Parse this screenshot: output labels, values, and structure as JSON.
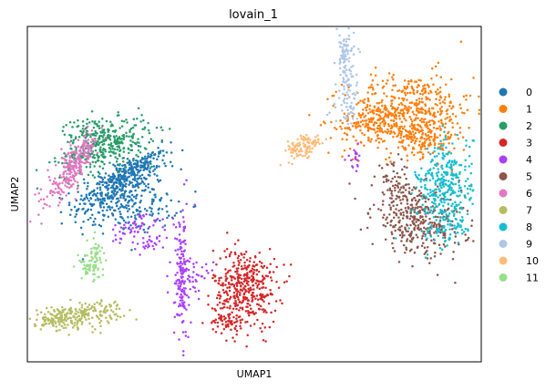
{
  "chart_data": {
    "type": "scatter",
    "title": "lovain_1",
    "xlabel": "UMAP1",
    "ylabel": "UMAP2",
    "xlim": [
      0,
      100
    ],
    "ylim": [
      0,
      100
    ],
    "ticks": "none",
    "grid": false,
    "legend_position": "right",
    "series": [
      {
        "name": "0",
        "color": "#1f77b4",
        "blobs": [
          [
            20,
            52,
            5,
            5,
            0.6,
            380
          ],
          [
            23,
            57,
            4,
            3,
            0.9,
            150
          ],
          [
            25,
            45,
            4,
            3,
            0.2,
            110
          ]
        ]
      },
      {
        "name": "1",
        "color": "#ff7f0e",
        "blobs": [
          [
            84,
            74,
            7,
            6,
            0.1,
            520
          ],
          [
            76,
            72,
            3,
            3,
            0.4,
            120
          ],
          [
            87,
            67,
            4,
            3,
            0,
            120
          ]
        ]
      },
      {
        "name": "2",
        "color": "#279e68",
        "blobs": [
          [
            17,
            64,
            5,
            4,
            0.5,
            330
          ],
          [
            14,
            69,
            3,
            2,
            0.2,
            80
          ]
        ]
      },
      {
        "name": "3",
        "color": "#d62728",
        "blobs": [
          [
            48,
            22,
            3.5,
            6,
            0,
            420
          ],
          [
            44,
            12,
            2,
            1.5,
            0,
            50
          ]
        ]
      },
      {
        "name": "4",
        "color": "#aa40fc",
        "blobs": [
          [
            34,
            25,
            0.8,
            10,
            0,
            150
          ],
          [
            37,
            25,
            2,
            2.5,
            0,
            40
          ],
          [
            23,
            40,
            3,
            2,
            0.4,
            50
          ],
          [
            28,
            36,
            3,
            2,
            0.6,
            30
          ],
          [
            72,
            61,
            0.8,
            2,
            0,
            20
          ]
        ]
      },
      {
        "name": "5",
        "color": "#8c564b",
        "blobs": [
          [
            86,
            42,
            5,
            5,
            -0.2,
            360
          ],
          [
            81,
            53,
            2,
            3,
            0,
            60
          ]
        ]
      },
      {
        "name": "6",
        "color": "#e377c2",
        "blobs": [
          [
            10,
            58,
            2.8,
            5,
            0.8,
            260
          ]
        ]
      },
      {
        "name": "7",
        "color": "#b5bd61",
        "blobs": [
          [
            11,
            14,
            5,
            2,
            0.45,
            220
          ],
          [
            6,
            12,
            2,
            1.5,
            0,
            40
          ]
        ]
      },
      {
        "name": "8",
        "color": "#17becf",
        "blobs": [
          [
            92,
            52,
            3,
            7,
            0.2,
            330
          ],
          [
            93,
            40,
            2,
            3,
            0,
            60
          ]
        ]
      },
      {
        "name": "9",
        "color": "#aec7e8",
        "blobs": [
          [
            70,
            91,
            1,
            4,
            0,
            80
          ],
          [
            71,
            82,
            1,
            3,
            0,
            40
          ],
          [
            70,
            75,
            1.5,
            2,
            0,
            30
          ]
        ]
      },
      {
        "name": "10",
        "color": "#ffbb78",
        "blobs": [
          [
            61,
            64,
            2,
            2,
            0.3,
            110
          ]
        ]
      },
      {
        "name": "11",
        "color": "#98df8a",
        "blobs": [
          [
            14,
            29,
            1.4,
            2,
            0,
            70
          ],
          [
            15,
            34,
            1,
            1.5,
            0,
            20
          ]
        ]
      }
    ]
  }
}
